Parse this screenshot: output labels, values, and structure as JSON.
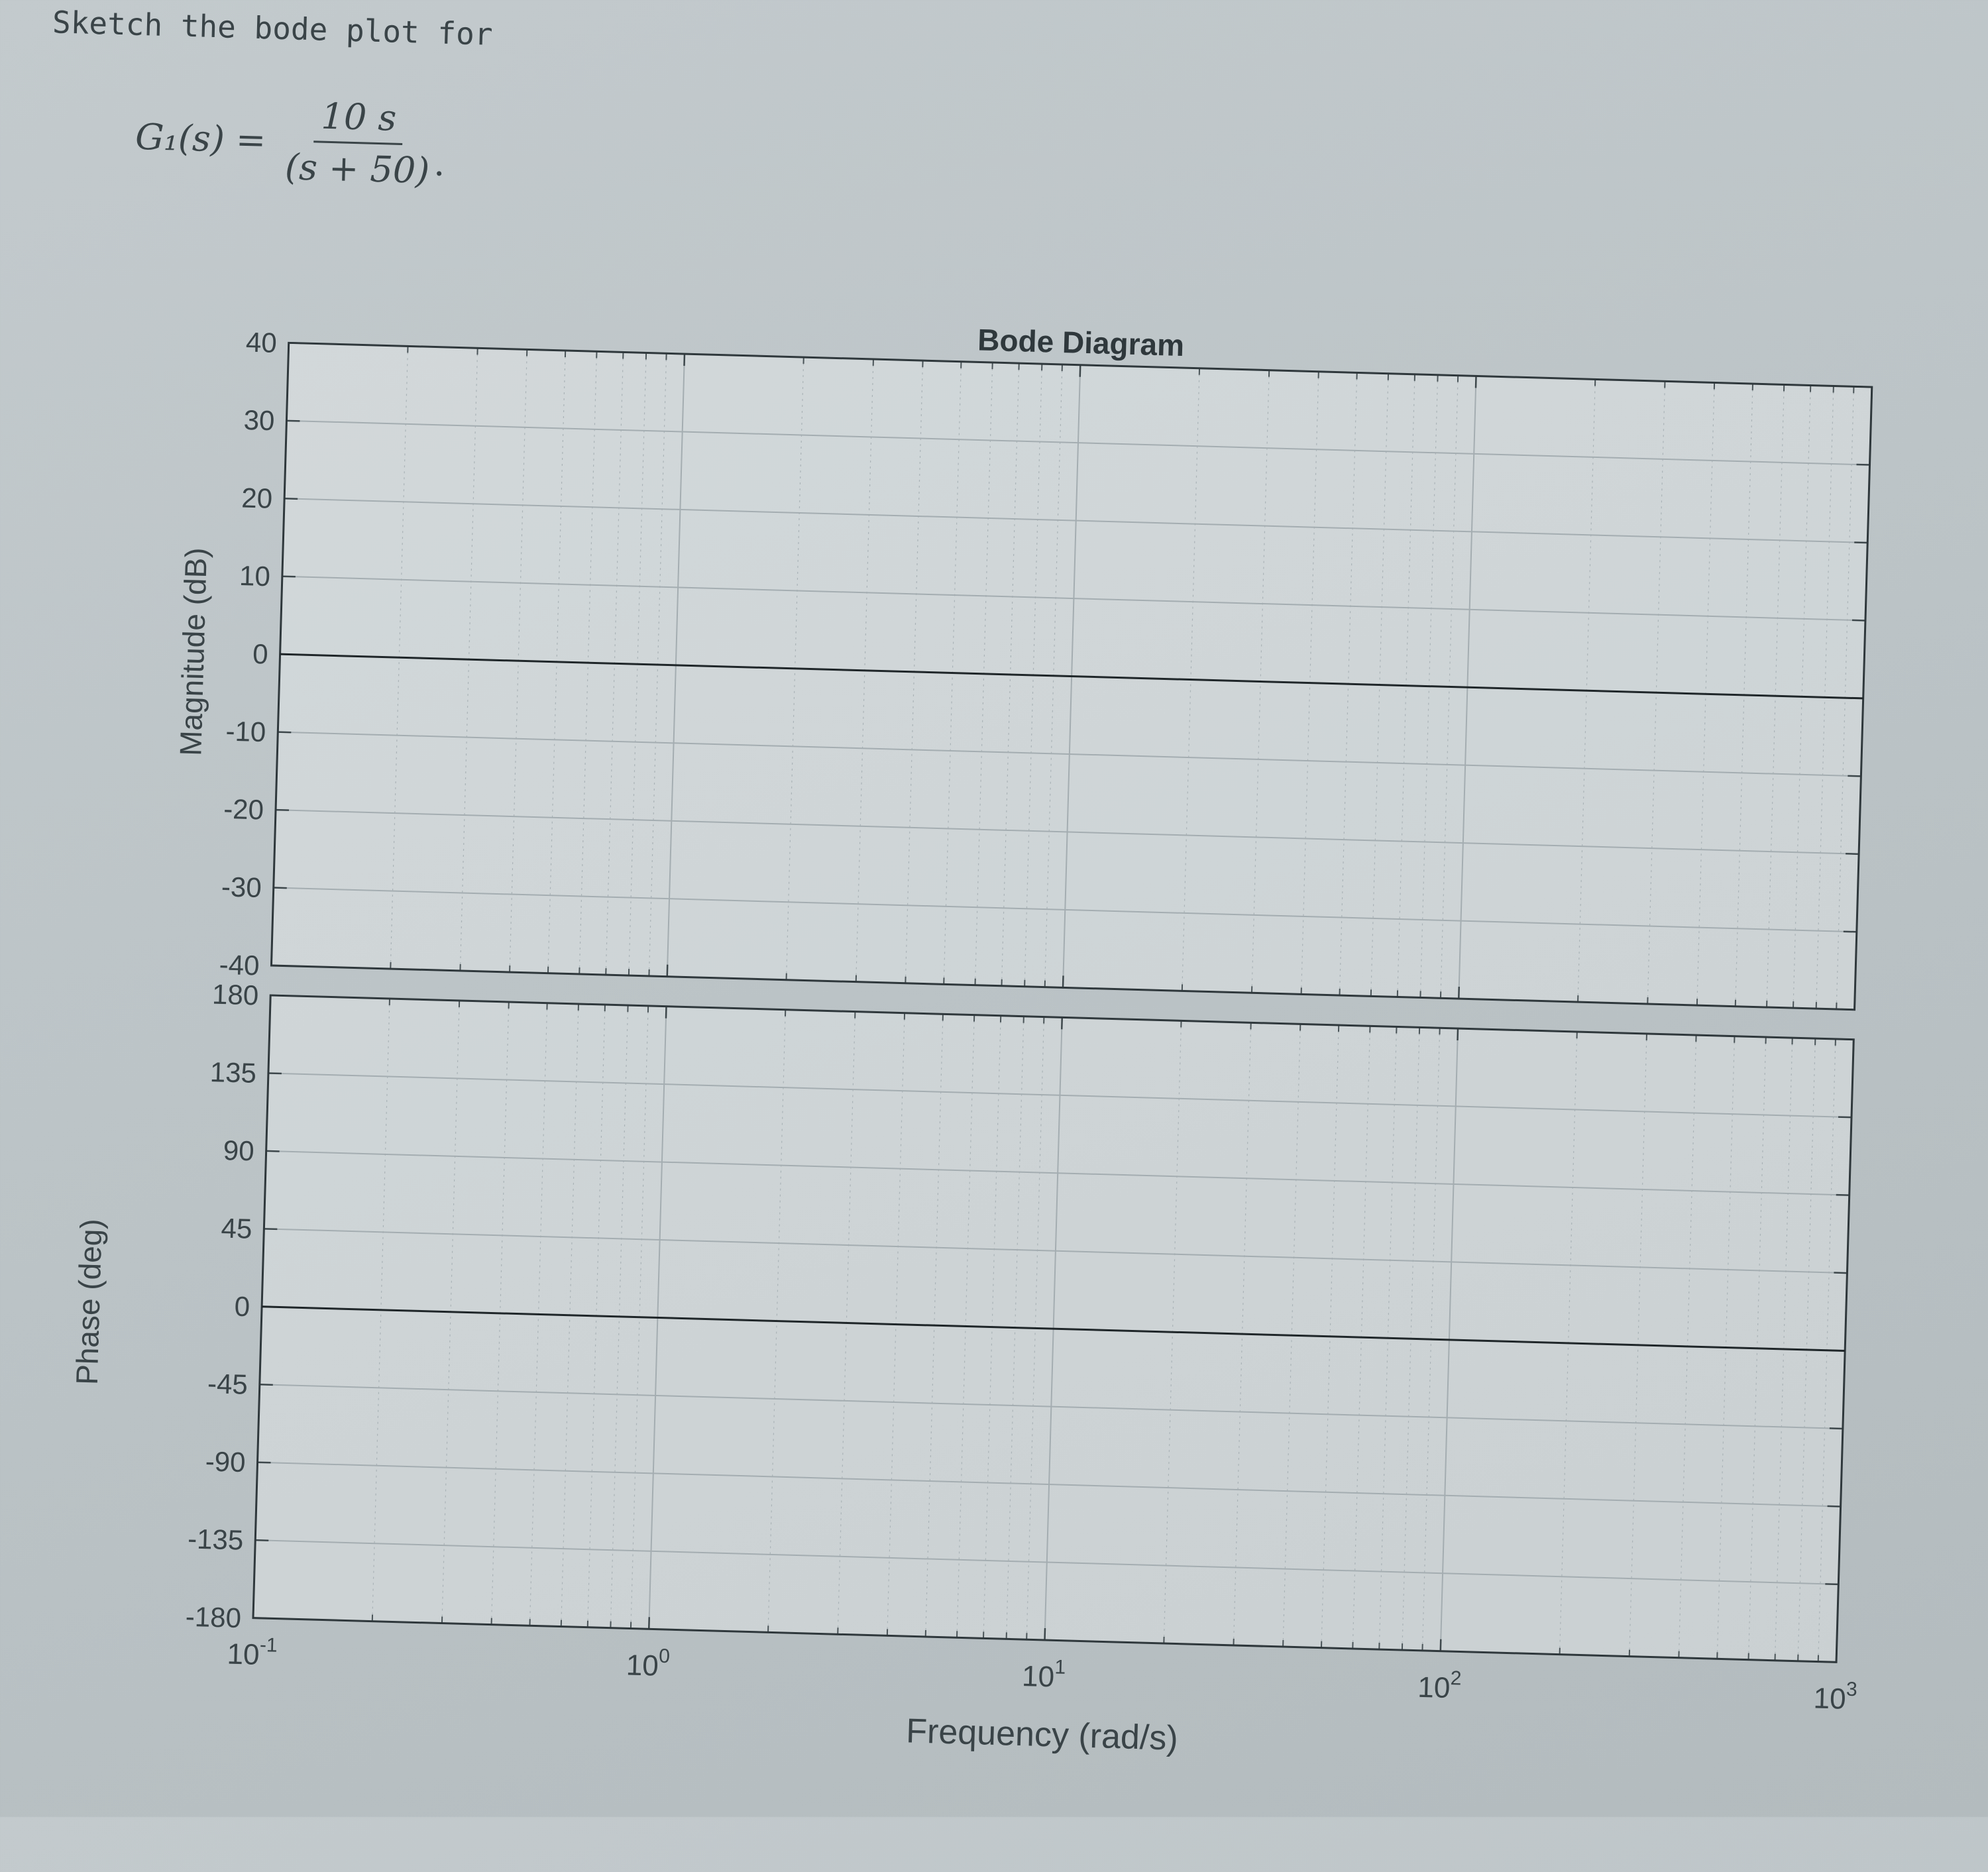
{
  "problem": {
    "prompt": "Sketch the bode plot for",
    "lhs": "G₁(s) =",
    "numerator": "10 s",
    "denominator": "(s + 50)",
    "end_punct": "."
  },
  "chart_data": {
    "type": "line",
    "title": "Bode Diagram",
    "xlabel": "Frequency  (rad/s)",
    "xscale": "log",
    "xlim": [
      0.1,
      1000
    ],
    "x_ticks": [
      {
        "base": "10",
        "exp": "-1"
      },
      {
        "base": "10",
        "exp": "0"
      },
      {
        "base": "10",
        "exp": "1"
      },
      {
        "base": "10",
        "exp": "2"
      },
      {
        "base": "10",
        "exp": "3"
      }
    ],
    "grid": true,
    "panels": [
      {
        "ylabel": "Magnitude (dB)",
        "ylim": [
          -40,
          40
        ],
        "y_ticks": [
          "40",
          "30",
          "20",
          "10",
          "0",
          "-10",
          "-20",
          "-30",
          "-40"
        ],
        "series": [
          {
            "x": [
              0.1,
              1000
            ],
            "y": [
              0,
              0
            ]
          }
        ]
      },
      {
        "ylabel": "Phase (deg)",
        "ylim": [
          -180,
          180
        ],
        "y_ticks": [
          "180",
          "135",
          "90",
          "45",
          "0",
          "-45",
          "-90",
          "-135",
          "-180"
        ],
        "series": [
          {
            "x": [
              0.1,
              1000
            ],
            "y": [
              0,
              0
            ]
          }
        ]
      }
    ]
  }
}
